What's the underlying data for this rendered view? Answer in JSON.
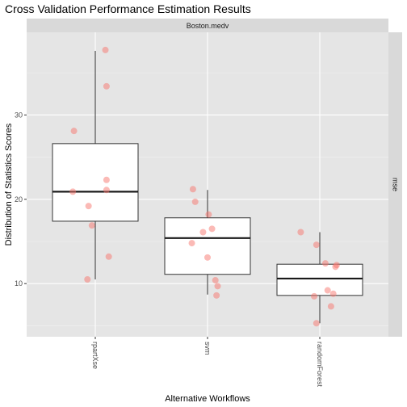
{
  "chart_data": {
    "type": "boxplot",
    "title": "Cross Validation Performance Estimation Results",
    "xlabel": "Alternative Workflows",
    "ylabel": "Distribution of Statistics Scores",
    "facet_top": "Boston.medv",
    "facet_right": "mse",
    "ylim": [
      3.7,
      39.8
    ],
    "yticks": [
      10,
      20,
      30
    ],
    "grid": true,
    "colors": {
      "panel": "#e5e5e5",
      "strip": "#d9d9d9",
      "grid_major": "#ffffff",
      "box_fill": "#ffffff",
      "box_line": "#333333",
      "points": "#f8766d"
    },
    "categories": [
      "rpartXse",
      "svm",
      "randomForest"
    ],
    "boxes": [
      {
        "name": "rpartXse",
        "min": 10.5,
        "q1": 17.4,
        "median": 20.9,
        "q3": 26.6,
        "max": 37.6
      },
      {
        "name": "svm",
        "min": 8.7,
        "q1": 11.1,
        "median": 15.4,
        "q3": 17.8,
        "max": 21.1
      },
      {
        "name": "randomForest",
        "min": 5.3,
        "q1": 8.6,
        "median": 10.6,
        "q3": 12.3,
        "max": 16.1
      }
    ],
    "points": [
      {
        "cat": 0,
        "jitter": 0.09,
        "y": 37.7
      },
      {
        "cat": 0,
        "jitter": 0.1,
        "y": 33.4
      },
      {
        "cat": 0,
        "jitter": -0.19,
        "y": 28.1
      },
      {
        "cat": 0,
        "jitter": 0.1,
        "y": 22.3
      },
      {
        "cat": 0,
        "jitter": 0.1,
        "y": 21.1
      },
      {
        "cat": 0,
        "jitter": -0.2,
        "y": 20.9
      },
      {
        "cat": 0,
        "jitter": -0.06,
        "y": 19.2
      },
      {
        "cat": 0,
        "jitter": -0.03,
        "y": 16.9
      },
      {
        "cat": 0,
        "jitter": 0.12,
        "y": 13.2
      },
      {
        "cat": 0,
        "jitter": -0.07,
        "y": 10.5
      },
      {
        "cat": 1,
        "jitter": -0.13,
        "y": 21.2
      },
      {
        "cat": 1,
        "jitter": -0.11,
        "y": 19.7
      },
      {
        "cat": 1,
        "jitter": 0.01,
        "y": 18.2
      },
      {
        "cat": 1,
        "jitter": 0.04,
        "y": 16.5
      },
      {
        "cat": 1,
        "jitter": -0.04,
        "y": 16.1
      },
      {
        "cat": 1,
        "jitter": -0.14,
        "y": 14.8
      },
      {
        "cat": 1,
        "jitter": 0.0,
        "y": 13.1
      },
      {
        "cat": 1,
        "jitter": 0.07,
        "y": 10.4
      },
      {
        "cat": 1,
        "jitter": 0.09,
        "y": 9.7
      },
      {
        "cat": 1,
        "jitter": 0.08,
        "y": 8.6
      },
      {
        "cat": 2,
        "jitter": -0.17,
        "y": 16.1
      },
      {
        "cat": 2,
        "jitter": -0.03,
        "y": 14.6
      },
      {
        "cat": 2,
        "jitter": 0.05,
        "y": 12.4
      },
      {
        "cat": 2,
        "jitter": 0.15,
        "y": 12.2
      },
      {
        "cat": 2,
        "jitter": 0.14,
        "y": 12.0
      },
      {
        "cat": 2,
        "jitter": 0.07,
        "y": 9.2
      },
      {
        "cat": 2,
        "jitter": 0.12,
        "y": 8.8
      },
      {
        "cat": 2,
        "jitter": -0.05,
        "y": 8.5
      },
      {
        "cat": 2,
        "jitter": 0.1,
        "y": 7.3
      },
      {
        "cat": 2,
        "jitter": -0.03,
        "y": 5.3
      }
    ]
  }
}
